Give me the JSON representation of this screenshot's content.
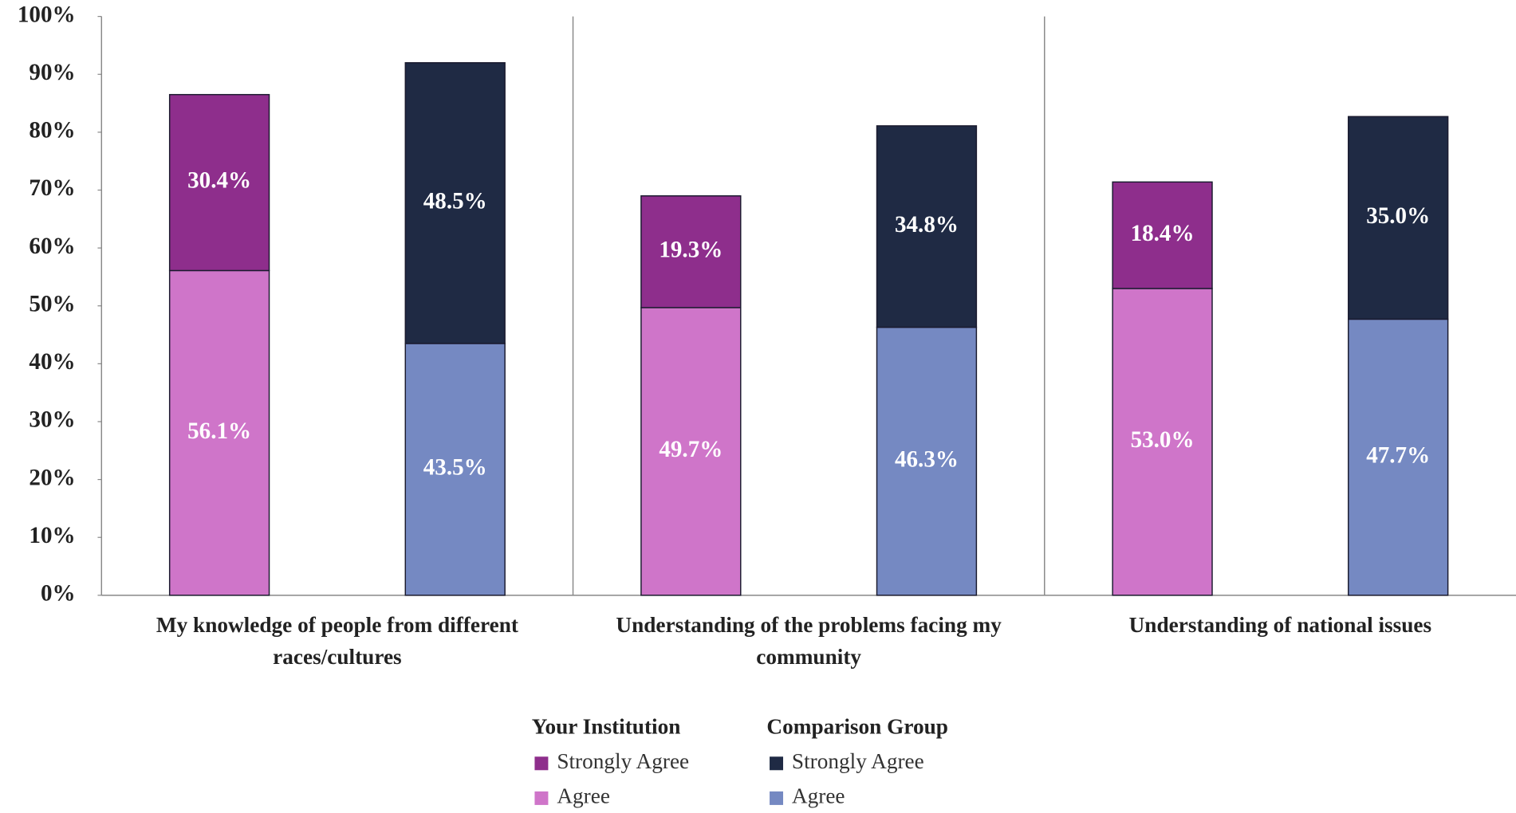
{
  "chart_data": {
    "type": "bar",
    "stacked": true,
    "categories": [
      "My knowledge of people from different races/cultures",
      "Understanding of the problems facing my community",
      "Understanding of national issues"
    ],
    "groups": [
      {
        "name": "Your Institution",
        "series": [
          {
            "name": "Strongly Agree",
            "color": "#8e2e8c",
            "values": [
              30.4,
              19.3,
              18.4
            ],
            "value_labels": [
              "30.4%",
              "19.3%",
              "18.4%"
            ]
          },
          {
            "name": "Agree",
            "color": "#cf75c9",
            "values": [
              56.1,
              49.7,
              53.0
            ],
            "value_labels": [
              "56.1%",
              "49.7%",
              "53.0%"
            ]
          }
        ]
      },
      {
        "name": "Comparison Group",
        "series": [
          {
            "name": "Strongly Agree",
            "color": "#1f2a44",
            "values": [
              48.5,
              34.8,
              35.0
            ],
            "value_labels": [
              "48.5%",
              "34.8%",
              "35.0%"
            ]
          },
          {
            "name": "Agree",
            "color": "#7589c2",
            "values": [
              43.5,
              46.3,
              47.7
            ],
            "value_labels": [
              "43.5%",
              "46.3%",
              "47.7%"
            ]
          }
        ]
      }
    ],
    "ylim": [
      0,
      100
    ],
    "yticks": [
      {
        "value": 0,
        "label": "0%"
      },
      {
        "value": 10,
        "label": "10%"
      },
      {
        "value": 20,
        "label": "20%"
      },
      {
        "value": 30,
        "label": "30%"
      },
      {
        "value": 40,
        "label": "40%"
      },
      {
        "value": 50,
        "label": "50%"
      },
      {
        "value": 60,
        "label": "60%"
      },
      {
        "value": 70,
        "label": "70%"
      },
      {
        "value": 80,
        "label": "80%"
      },
      {
        "value": 90,
        "label": "90%"
      },
      {
        "value": 100,
        "label": "100%"
      }
    ],
    "grid": false
  }
}
